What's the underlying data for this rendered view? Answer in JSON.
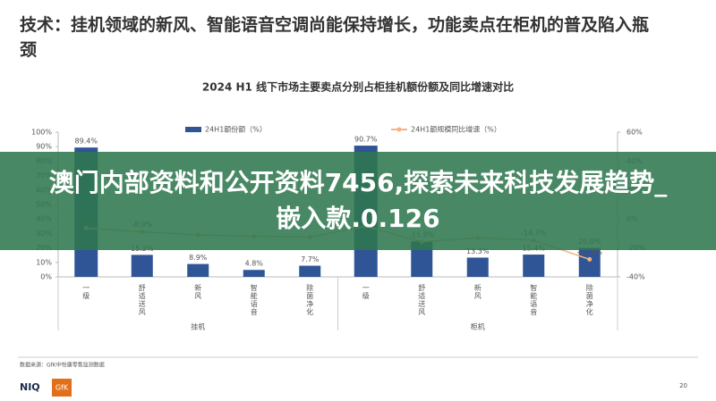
{
  "header": {
    "title": "技术：挂机领域的新风、智能语音空调尚能保持增长，功能卖点在柜机的普及陷入瓶颈"
  },
  "chart_data": {
    "type": "bar-line",
    "title": "2024 H1 线下市场主要卖点分别占柜挂机额份额及同比增速对比",
    "groups": [
      "挂机",
      "柜机"
    ],
    "categories": [
      "一级",
      "舒适送风",
      "新风",
      "智能语音",
      "除菌净化",
      "一级",
      "舒适送风",
      "新风",
      "智能语音",
      "除菌净化"
    ],
    "series": [
      {
        "name": "24H1额份额（%）",
        "color": "#2f5597",
        "values": [
          89.4,
          15.2,
          8.9,
          4.8,
          7.7,
          90.7,
          24.6,
          13.3,
          15.4,
          20.0
        ],
        "value_labels": [
          "89.4%",
          "15.2%",
          "8.9%",
          "4.8%",
          "7.7%",
          "90.7%",
          null,
          "13.3%",
          "15.4%",
          "20.0%"
        ]
      },
      {
        "name": "24H1额规模同比增速（%）",
        "color": "#f4b183",
        "axis": "y2",
        "values": [
          -6.3,
          -8.9,
          -11.0,
          -12.0,
          -12.5,
          -5.0,
          -15.8,
          -13.0,
          -14.7,
          -27.9
        ],
        "value_labels": [
          "-6.3%",
          "-8.9%",
          null,
          null,
          null,
          null,
          "-15.8%",
          null,
          "-14.7%",
          "-27.9%"
        ]
      }
    ],
    "ylim": [
      0,
      100
    ],
    "yticks": [
      {
        "value": 0,
        "label": "0%"
      },
      {
        "value": 10,
        "label": "10%"
      },
      {
        "value": 20,
        "label": "20%"
      },
      {
        "value": 30,
        "label": "30%"
      },
      {
        "value": 40,
        "label": "40%"
      },
      {
        "value": 50,
        "label": "50%"
      },
      {
        "value": 60,
        "label": "60%"
      },
      {
        "value": 70,
        "label": "70%"
      },
      {
        "value": 80,
        "label": "80%"
      },
      {
        "value": 90,
        "label": "90%"
      },
      {
        "value": 100,
        "label": "100%"
      }
    ],
    "y2lim": [
      -40,
      60
    ],
    "y2ticks": [
      {
        "value": -40,
        "label": "-40%"
      },
      {
        "value": -20,
        "label": "-20%"
      },
      {
        "value": 0,
        "label": "0%"
      },
      {
        "value": 20,
        "label": "20%"
      },
      {
        "value": 40,
        "label": "40%"
      },
      {
        "value": 60,
        "label": "60%"
      }
    ]
  },
  "footer": {
    "source": "数据来源：GfK中怡康零售监测数据",
    "logos": [
      "NIQ",
      "GfK"
    ],
    "page": "20"
  },
  "banner": {
    "text": "澳门内部资料和公开资料7456,探索未来科技发展趋势_嵌入款.0.126"
  }
}
